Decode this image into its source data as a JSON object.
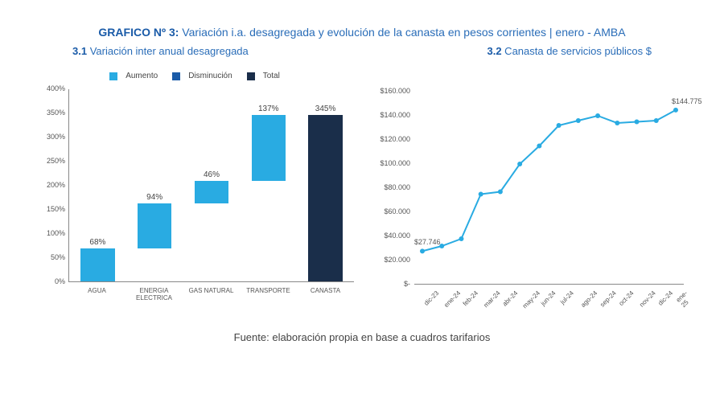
{
  "title": {
    "bold": "GRAFICO Nº 3:",
    "rest": " Variación i.a. desagregada y evolución de la canasta en pesos corrientes | enero - AMBA"
  },
  "sub1": {
    "bold": "3.1",
    "text": " Variación inter anual desagregada"
  },
  "sub2": {
    "bold": "3.2",
    "text": " Canasta de servicios públicos $"
  },
  "legend": {
    "items": [
      {
        "label": "Aumento",
        "color": "#29abe2"
      },
      {
        "label": "Disminución",
        "color": "#1a5ba8"
      },
      {
        "label": "Total",
        "color": "#1a2e4a"
      }
    ]
  },
  "bar_chart": {
    "ymax": 400,
    "ytick_step": 50,
    "yticks": [
      "0%",
      "50%",
      "100%",
      "150%",
      "200%",
      "250%",
      "300%",
      "350%",
      "400%"
    ],
    "categories": [
      {
        "name": "AGUA",
        "increase_start": 0,
        "increase_height": 68,
        "label": "68%",
        "color": "#29abe2",
        "total": false
      },
      {
        "name": "ENERGIA ELECTRICA",
        "increase_start": 68,
        "increase_height": 94,
        "label": "94%",
        "color": "#29abe2",
        "total": false
      },
      {
        "name": "GAS NATURAL",
        "increase_start": 162,
        "increase_height": 46,
        "label": "46%",
        "color": "#29abe2",
        "total": false
      },
      {
        "name": "TRANSPORTE",
        "increase_start": 208,
        "increase_height": 137,
        "label": "137%",
        "color": "#29abe2",
        "total": false
      },
      {
        "name": "CANASTA",
        "increase_start": 0,
        "increase_height": 345,
        "label": "345%",
        "color": "#1a2e4a",
        "total": true
      }
    ]
  },
  "line_chart": {
    "ymax": 160000,
    "ytick_step": 20000,
    "yticks": [
      "$-",
      "$20.000",
      "$40.000",
      "$60.000",
      "$80.000",
      "$100.000",
      "$120.000",
      "$140.000",
      "$160.000"
    ],
    "points": [
      {
        "x": "dic-23",
        "y": 27746,
        "label": "$27.746",
        "show_label": true
      },
      {
        "x": "ene-24",
        "y": 32000
      },
      {
        "x": "feb-24",
        "y": 38000
      },
      {
        "x": "mar-24",
        "y": 75000
      },
      {
        "x": "abr-24",
        "y": 77000
      },
      {
        "x": "may-24",
        "y": 100000
      },
      {
        "x": "jun-24",
        "y": 115000
      },
      {
        "x": "jul-24",
        "y": 132000
      },
      {
        "x": "ago-24",
        "y": 136000
      },
      {
        "x": "sep-24",
        "y": 140000
      },
      {
        "x": "oct-24",
        "y": 134000
      },
      {
        "x": "nov-24",
        "y": 135000
      },
      {
        "x": "dic-24",
        "y": 136000
      },
      {
        "x": "ene-25",
        "y": 144775,
        "label": "$144.775",
        "show_label": true
      }
    ],
    "line_color": "#29abe2",
    "marker_color": "#29abe2"
  },
  "source": "Fuente: elaboración propia en base a cuadros tarifarios"
}
